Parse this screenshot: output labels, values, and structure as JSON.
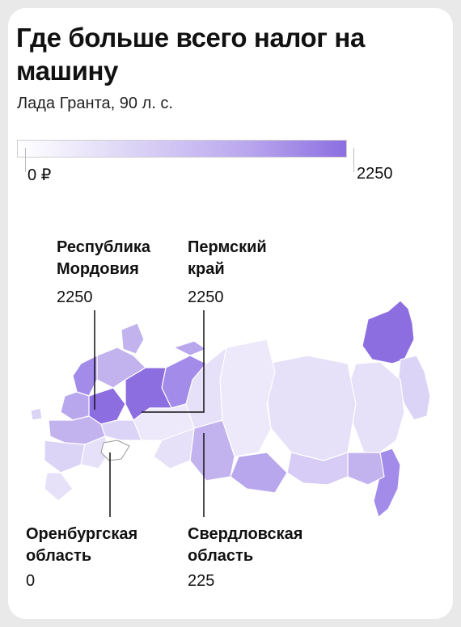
{
  "title": "Где больше всего налог на машину",
  "subtitle": "Лада Гранта, 90 л. с.",
  "scale": {
    "min_label": "0 ₽",
    "max_label": "2250",
    "min": 0,
    "max": 2250
  },
  "callouts": [
    {
      "name": "Республика Мордовия",
      "value": "2250"
    },
    {
      "name": "Пермский край",
      "value": "2250"
    },
    {
      "name": "Оренбургская область",
      "value": "0"
    },
    {
      "name": "Свердловская область",
      "value": "225"
    }
  ],
  "colors": {
    "lightest": "#ffffff",
    "light": "#e6e0f8",
    "mid": "#c2b3ef",
    "strong": "#a38bea",
    "darkest": "#8c6ee0",
    "leader_line": "#111111"
  }
}
